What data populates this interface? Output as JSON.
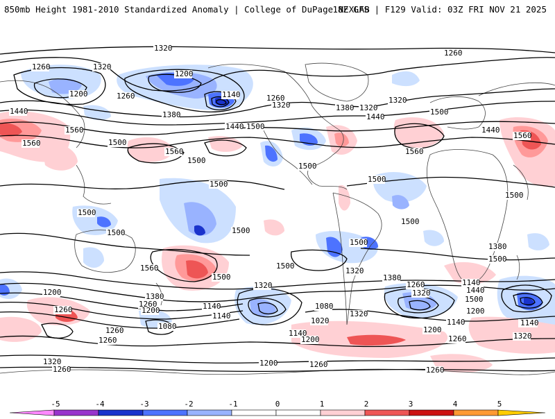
{
  "header": {
    "title": "850mb Height 1981-2010 Standardized Anomaly | College of DuPage NEXLAB",
    "run_info": "18Z GFS | F129 Valid: 03Z FRI NOV 21 2025"
  },
  "contour_labels": [
    "1320",
    "1260",
    "1320",
    "1200",
    "1260",
    "1200",
    "1260",
    "1140",
    "1260",
    "1320",
    "1320",
    "1440",
    "1560",
    "1560",
    "1380",
    "1440",
    "1500",
    "1500",
    "1380",
    "1320",
    "1440",
    "1500",
    "1440",
    "1560",
    "1560",
    "1560",
    "1500",
    "1500",
    "1500",
    "1500",
    "1500",
    "1500",
    "1500",
    "1500",
    "1500",
    "1380",
    "1560",
    "1500",
    "1500",
    "1320",
    "1380",
    "1320",
    "1260",
    "1140",
    "1440",
    "1320",
    "1200",
    "1260",
    "1380",
    "1260",
    "1200",
    "1140",
    "1140",
    "1080",
    "1080",
    "1020",
    "1140",
    "1200",
    "1260",
    "1260",
    "1200",
    "1140",
    "1140",
    "1200",
    "1320",
    "1260",
    "1320",
    "1320",
    "1260",
    "1200",
    "1260",
    "1260",
    "1500",
    "1500",
    "1560",
    "1500",
    "1140"
  ],
  "colors": {
    "neg5": "#ff88ff",
    "neg4": "#9933cc",
    "neg3": "#1a33cc",
    "neg2": "#4d73ff",
    "neg1": "#99b3ff",
    "neg0": "#cce0ff",
    "zero": "#ffffff",
    "pos0": "#ffd0d4",
    "pos1": "#ff9999",
    "pos2": "#ee5555",
    "pos3": "#cc1111",
    "pos4": "#ff9933",
    "pos5": "#ffcc00"
  },
  "colorbar": {
    "ticks": [
      "-5",
      "-4",
      "-3",
      "-2",
      "-1",
      "0",
      "1",
      "2",
      "3",
      "4",
      "5"
    ]
  }
}
